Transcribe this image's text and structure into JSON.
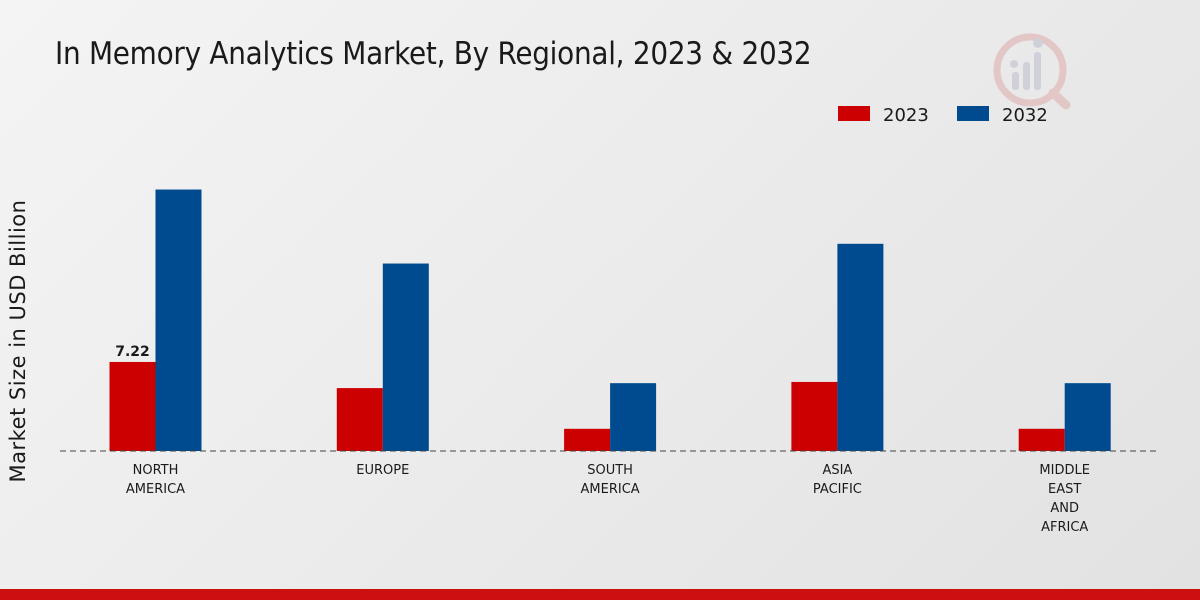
{
  "chart_data": {
    "type": "bar",
    "title": "In Memory Analytics Market, By Regional, 2023 & 2032",
    "xlabel": "",
    "ylabel": "Market Size in USD Billion",
    "categories": [
      [
        "NORTH",
        "AMERICA"
      ],
      [
        "EUROPE"
      ],
      [
        "SOUTH",
        "AMERICA"
      ],
      [
        "ASIA",
        "PACIFIC"
      ],
      [
        "MIDDLE",
        "EAST",
        "AND",
        "AFRICA"
      ]
    ],
    "series": [
      {
        "name": "2023",
        "color": "#cc0000",
        "values": [
          7.22,
          5.1,
          1.8,
          5.6,
          1.8
        ]
      },
      {
        "name": "2032",
        "color": "#004a8f",
        "values": [
          21.2,
          15.2,
          5.5,
          16.8,
          5.5
        ]
      }
    ],
    "data_labels": [
      {
        "series": 0,
        "index": 0,
        "text": "7.22"
      }
    ],
    "ylim": [
      0,
      30
    ],
    "grid": false,
    "legend_position": "top-right",
    "baseline": "dashed"
  },
  "brand": {
    "accent": "#cc1010",
    "logo": "market-research-logo-icon"
  }
}
